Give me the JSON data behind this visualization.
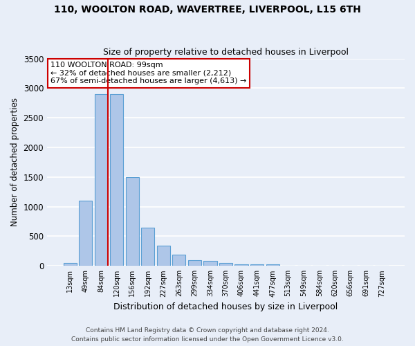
{
  "title1": "110, WOOLTON ROAD, WAVERTREE, LIVERPOOL, L15 6TH",
  "title2": "Size of property relative to detached houses in Liverpool",
  "xlabel": "Distribution of detached houses by size in Liverpool",
  "ylabel": "Number of detached properties",
  "categories": [
    "13sqm",
    "49sqm",
    "84sqm",
    "120sqm",
    "156sqm",
    "192sqm",
    "227sqm",
    "263sqm",
    "299sqm",
    "334sqm",
    "370sqm",
    "406sqm",
    "441sqm",
    "477sqm",
    "513sqm",
    "549sqm",
    "584sqm",
    "620sqm",
    "656sqm",
    "691sqm",
    "727sqm"
  ],
  "values": [
    50,
    1100,
    2900,
    2900,
    1500,
    640,
    340,
    185,
    100,
    90,
    55,
    30,
    30,
    25,
    0,
    0,
    0,
    0,
    0,
    0,
    0
  ],
  "bar_color": "#aec6e8",
  "bar_edge_color": "#5a9fd4",
  "background_color": "#e8eef8",
  "grid_color": "#ffffff",
  "annotation_text": "110 WOOLTON ROAD: 99sqm\n← 32% of detached houses are smaller (2,212)\n67% of semi-detached houses are larger (4,613) →",
  "vline_color": "#cc0000",
  "annotation_box_edge": "#cc0000",
  "ylim": [
    0,
    3500
  ],
  "yticks": [
    0,
    500,
    1000,
    1500,
    2000,
    2500,
    3000,
    3500
  ],
  "footer1": "Contains HM Land Registry data © Crown copyright and database right 2024.",
  "footer2": "Contains public sector information licensed under the Open Government Licence v3.0."
}
